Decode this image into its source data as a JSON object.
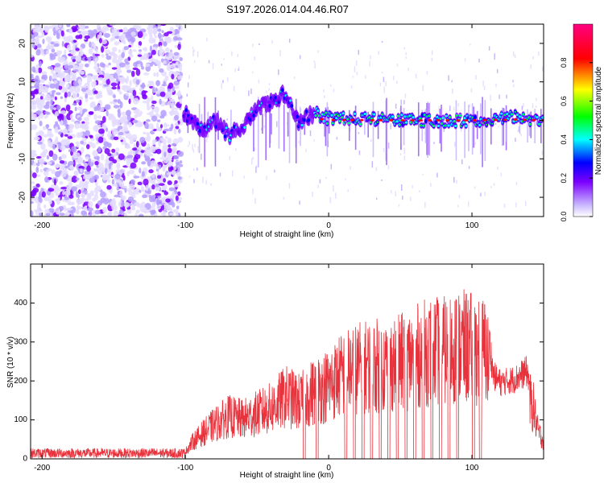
{
  "title": "S197.2026.014.04.46.R07",
  "chart_data": [
    {
      "type": "heatmap",
      "name": "spectrogram",
      "xlabel": "Height of straight line (km)",
      "ylabel": "Frequency (Hz)",
      "xlim": [
        -208,
        150
      ],
      "ylim": [
        -25,
        25
      ],
      "xticks": [
        -200,
        -100,
        0,
        100
      ],
      "yticks": [
        -20,
        -10,
        0,
        10,
        20
      ],
      "colorbar": {
        "label": "Normalized spectral amplitude",
        "range": [
          0,
          1
        ],
        "ticks": [
          "0.0",
          "0.2",
          "0.4",
          "0.6",
          "0.8"
        ],
        "tick_values": [
          0.0,
          0.2,
          0.4,
          0.6,
          0.8
        ],
        "colors": [
          "#ffffff",
          "#c9b8ff",
          "#7b00ff",
          "#0000ff",
          "#00ffff",
          "#00ff00",
          "#ffff00",
          "#ff0000",
          "#ff0080"
        ]
      },
      "features": [
        {
          "region": "noise",
          "x_range": [
            -208,
            -103
          ],
          "freq_range": [
            -25,
            25
          ]
        },
        {
          "region": "oscillating_signal",
          "points": [
            [
              -100,
              2
            ],
            [
              -90,
              -3
            ],
            [
              -80,
              0
            ],
            [
              -70,
              -4
            ],
            [
              -60,
              -2
            ],
            [
              -50,
              3
            ],
            [
              -40,
              5
            ],
            [
              -30,
              7
            ],
            [
              -25,
              3
            ],
            [
              -20,
              -1
            ],
            [
              -15,
              1
            ],
            [
              -10,
              2
            ],
            [
              0,
              0.5
            ],
            [
              50,
              0
            ],
            [
              100,
              0
            ],
            [
              130,
              1
            ],
            [
              150,
              0
            ]
          ]
        },
        {
          "region": "strong_line",
          "x_range": [
            -10,
            150
          ],
          "freq": 0
        }
      ]
    },
    {
      "type": "line",
      "name": "snr",
      "xlabel": "Height of straight line (km)",
      "ylabel": "SNR (10 * v/v)",
      "xlim": [
        -208,
        150
      ],
      "ylim": [
        0,
        500
      ],
      "xticks": [
        -200,
        -100,
        0,
        100
      ],
      "yticks": [
        0,
        100,
        200,
        300,
        400
      ],
      "color": "#e8323c",
      "envelope": [
        [
          -208,
          25
        ],
        [
          -100,
          25
        ],
        [
          -95,
          60
        ],
        [
          -88,
          90
        ],
        [
          -80,
          120
        ],
        [
          -70,
          150
        ],
        [
          -60,
          140
        ],
        [
          -50,
          160
        ],
        [
          -40,
          180
        ],
        [
          -30,
          220
        ],
        [
          -20,
          200
        ],
        [
          -10,
          240
        ],
        [
          0,
          260
        ],
        [
          10,
          300
        ],
        [
          20,
          320
        ],
        [
          30,
          330
        ],
        [
          40,
          330
        ],
        [
          50,
          340
        ],
        [
          60,
          360
        ],
        [
          70,
          380
        ],
        [
          80,
          380
        ],
        [
          90,
          400
        ],
        [
          100,
          390
        ],
        [
          110,
          380
        ],
        [
          115,
          220
        ],
        [
          120,
          200
        ],
        [
          130,
          210
        ],
        [
          138,
          230
        ],
        [
          143,
          180
        ],
        [
          146,
          100
        ],
        [
          150,
          60
        ]
      ],
      "dropouts_km": [
        -17,
        -8,
        12,
        18,
        24,
        30,
        36,
        42,
        48,
        54,
        60,
        66,
        72,
        78,
        84,
        90,
        101,
        106
      ]
    }
  ]
}
